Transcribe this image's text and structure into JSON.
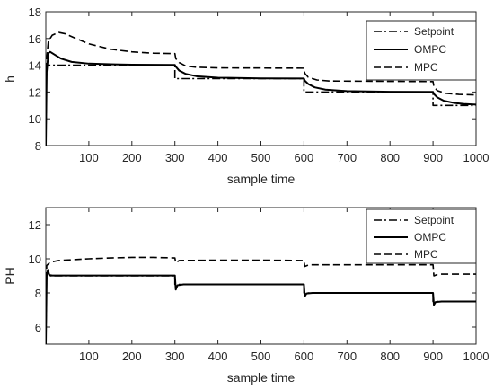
{
  "chart_data": [
    {
      "type": "line",
      "ylabel": "h",
      "xlabel": "sample time",
      "xlim": [
        0,
        1000
      ],
      "ylim": [
        8,
        18
      ],
      "xticks": [
        100,
        200,
        300,
        400,
        500,
        600,
        700,
        800,
        900,
        1000
      ],
      "yticks": [
        8,
        10,
        12,
        14,
        16,
        18
      ],
      "grid": false,
      "legend_position": "top-right",
      "series": [
        {
          "name": "Setpoint",
          "style": "dashdot",
          "points": [
            [
              0,
              8
            ],
            [
              1,
              14
            ],
            [
              300,
              14
            ],
            [
              300,
              13
            ],
            [
              600,
              13
            ],
            [
              600,
              12
            ],
            [
              900,
              12
            ],
            [
              900,
              11
            ],
            [
              1000,
              11
            ]
          ]
        },
        {
          "name": "OMPC",
          "style": "solid",
          "points": [
            [
              0,
              8
            ],
            [
              2,
              13.5
            ],
            [
              6,
              14.9
            ],
            [
              10,
              15.0
            ],
            [
              20,
              14.8
            ],
            [
              35,
              14.5
            ],
            [
              60,
              14.25
            ],
            [
              100,
              14.12
            ],
            [
              150,
              14.07
            ],
            [
              200,
              14.04
            ],
            [
              300,
              14.02
            ],
            [
              302,
              13.9
            ],
            [
              310,
              13.6
            ],
            [
              325,
              13.35
            ],
            [
              350,
              13.18
            ],
            [
              400,
              13.07
            ],
            [
              500,
              13.02
            ],
            [
              600,
              13.01
            ],
            [
              602,
              12.85
            ],
            [
              610,
              12.6
            ],
            [
              625,
              12.35
            ],
            [
              650,
              12.18
            ],
            [
              700,
              12.07
            ],
            [
              800,
              12.02
            ],
            [
              900,
              12.01
            ],
            [
              902,
              11.85
            ],
            [
              910,
              11.6
            ],
            [
              925,
              11.35
            ],
            [
              950,
              11.18
            ],
            [
              975,
              11.1
            ],
            [
              1000,
              11.06
            ]
          ]
        },
        {
          "name": "MPC",
          "style": "dashed",
          "points": [
            [
              0,
              8
            ],
            [
              2,
              14.5
            ],
            [
              6,
              15.8
            ],
            [
              15,
              16.25
            ],
            [
              30,
              16.45
            ],
            [
              45,
              16.35
            ],
            [
              70,
              16.0
            ],
            [
              100,
              15.6
            ],
            [
              150,
              15.2
            ],
            [
              200,
              15.0
            ],
            [
              250,
              14.9
            ],
            [
              300,
              14.87
            ],
            [
              302,
              14.5
            ],
            [
              310,
              14.2
            ],
            [
              325,
              13.95
            ],
            [
              350,
              13.85
            ],
            [
              400,
              13.8
            ],
            [
              600,
              13.78
            ],
            [
              602,
              13.4
            ],
            [
              610,
              13.1
            ],
            [
              630,
              12.9
            ],
            [
              660,
              12.82
            ],
            [
              900,
              12.78
            ],
            [
              902,
              12.4
            ],
            [
              910,
              12.1
            ],
            [
              930,
              11.9
            ],
            [
              960,
              11.82
            ],
            [
              1000,
              11.78
            ]
          ]
        }
      ]
    },
    {
      "type": "line",
      "ylabel": "PH",
      "xlabel": "sample time",
      "xlim": [
        0,
        1000
      ],
      "ylim": [
        5,
        13
      ],
      "xticks": [
        100,
        200,
        300,
        400,
        500,
        600,
        700,
        800,
        900,
        1000
      ],
      "yticks": [
        6,
        8,
        10,
        12
      ],
      "grid": false,
      "legend_position": "top-right",
      "series": [
        {
          "name": "Setpoint",
          "style": "dashdot",
          "points": [
            [
              0,
              5
            ],
            [
              1,
              9
            ],
            [
              300,
              9
            ],
            [
              300,
              8.5
            ],
            [
              600,
              8.5
            ],
            [
              600,
              8
            ],
            [
              900,
              8
            ],
            [
              900,
              7.5
            ],
            [
              1000,
              7.5
            ]
          ]
        },
        {
          "name": "OMPC",
          "style": "solid",
          "points": [
            [
              0,
              5
            ],
            [
              2,
              9.0
            ],
            [
              5,
              9.35
            ],
            [
              8,
              9.05
            ],
            [
              15,
              9.02
            ],
            [
              100,
              9.02
            ],
            [
              300,
              9.02
            ],
            [
              302,
              8.2
            ],
            [
              306,
              8.45
            ],
            [
              320,
              8.5
            ],
            [
              600,
              8.5
            ],
            [
              602,
              7.8
            ],
            [
              606,
              7.97
            ],
            [
              620,
              8.0
            ],
            [
              900,
              8.0
            ],
            [
              902,
              7.3
            ],
            [
              906,
              7.47
            ],
            [
              920,
              7.5
            ],
            [
              1000,
              7.5
            ]
          ]
        },
        {
          "name": "MPC",
          "style": "dashed",
          "points": [
            [
              0,
              5
            ],
            [
              2,
              9.6
            ],
            [
              10,
              9.8
            ],
            [
              30,
              9.9
            ],
            [
              100,
              10.0
            ],
            [
              150,
              10.05
            ],
            [
              200,
              10.08
            ],
            [
              250,
              10.08
            ],
            [
              300,
              10.05
            ],
            [
              302,
              9.75
            ],
            [
              310,
              9.9
            ],
            [
              400,
              9.92
            ],
            [
              500,
              9.92
            ],
            [
              600,
              9.9
            ],
            [
              602,
              9.55
            ],
            [
              612,
              9.65
            ],
            [
              900,
              9.65
            ],
            [
              902,
              9.0
            ],
            [
              912,
              9.1
            ],
            [
              1000,
              9.1
            ]
          ]
        }
      ]
    }
  ]
}
